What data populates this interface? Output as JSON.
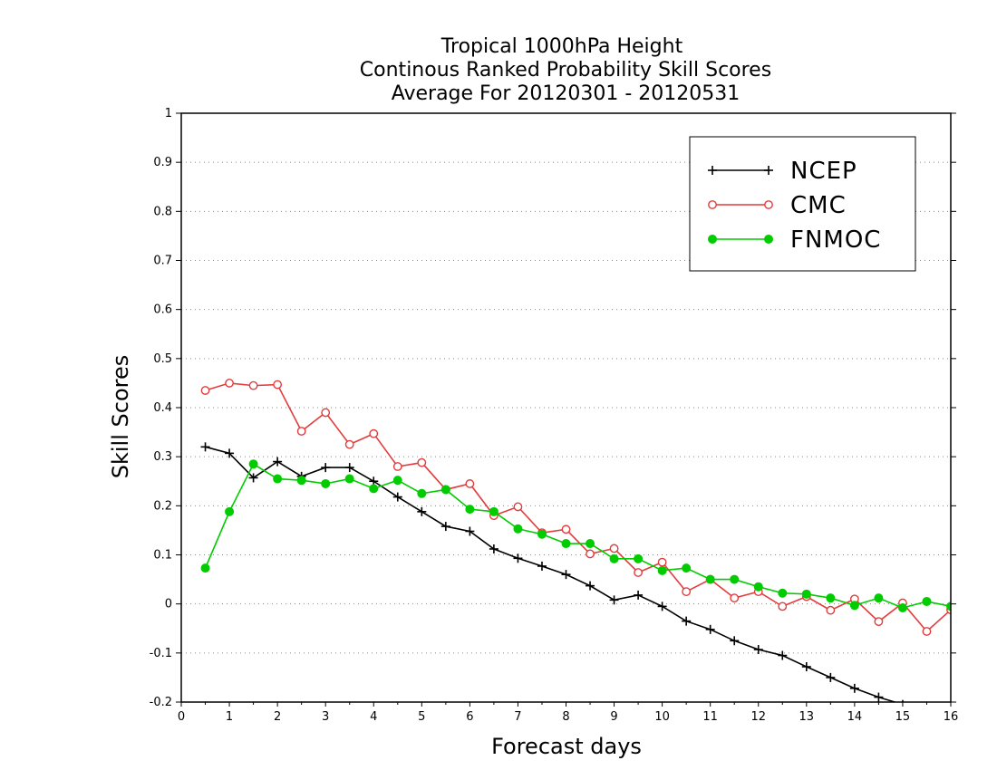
{
  "chart_data": {
    "type": "line",
    "title": [
      "Tropical 1000hPa Height",
      "Continous Ranked Probability Skill Scores",
      "Average For 20120301 - 20120531"
    ],
    "xlabel": "Forecast days",
    "ylabel": "Skill Scores",
    "xlim": [
      0,
      16
    ],
    "ylim": [
      -0.2,
      1
    ],
    "xticks": [
      "0",
      "1",
      "2",
      "3",
      "4",
      "5",
      "6",
      "7",
      "8",
      "9",
      "10",
      "11",
      "12",
      "13",
      "14",
      "15",
      "16"
    ],
    "yticks": [
      "1",
      "0.9",
      "0.8",
      "0.7",
      "0.6",
      "0.5",
      "0.4",
      "0.3",
      "0.2",
      "0.1",
      "0",
      "-0.1",
      "-0.2"
    ],
    "grid": "horizontal dotted",
    "legend_position": "top-right",
    "x": [
      0.5,
      1,
      1.5,
      2,
      2.5,
      3,
      3.5,
      4,
      4.5,
      5,
      5.5,
      6,
      6.5,
      7,
      7.5,
      8,
      8.5,
      9,
      9.5,
      10,
      10.5,
      11,
      11.5,
      12,
      12.5,
      13,
      13.5,
      14,
      14.5,
      15,
      15.5,
      16
    ],
    "series": [
      {
        "name": "NCEP",
        "color": "#000000",
        "marker": "plus",
        "values": [
          0.32,
          0.307,
          0.257,
          0.29,
          0.26,
          0.278,
          0.278,
          0.25,
          0.218,
          0.188,
          0.158,
          0.148,
          0.112,
          0.093,
          0.077,
          0.06,
          0.037,
          0.008,
          0.018,
          -0.005,
          -0.035,
          -0.052,
          -0.075,
          -0.093,
          -0.105,
          -0.128,
          -0.15,
          -0.172,
          -0.19,
          -0.205,
          null,
          null
        ]
      },
      {
        "name": "CMC",
        "color": "#e23c3c",
        "marker": "open-circle",
        "values": [
          0.435,
          0.45,
          0.445,
          0.447,
          0.352,
          0.39,
          0.325,
          0.347,
          0.28,
          0.288,
          0.233,
          0.245,
          0.18,
          0.198,
          0.145,
          0.152,
          0.102,
          0.113,
          0.064,
          0.085,
          0.025,
          0.05,
          0.012,
          0.025,
          -0.005,
          0.015,
          -0.013,
          0.01,
          -0.036,
          0.002,
          -0.056,
          -0.012
        ]
      },
      {
        "name": "FNMOC",
        "color": "#00cc00",
        "marker": "filled-circle",
        "values": [
          0.073,
          0.188,
          0.285,
          0.255,
          0.252,
          0.245,
          0.255,
          0.235,
          0.252,
          0.225,
          0.233,
          0.193,
          0.188,
          0.153,
          0.142,
          0.123,
          0.123,
          0.092,
          0.092,
          0.068,
          0.073,
          0.05,
          0.05,
          0.035,
          0.022,
          0.02,
          0.012,
          -0.003,
          0.012,
          -0.008,
          0.005,
          -0.005
        ]
      }
    ]
  }
}
